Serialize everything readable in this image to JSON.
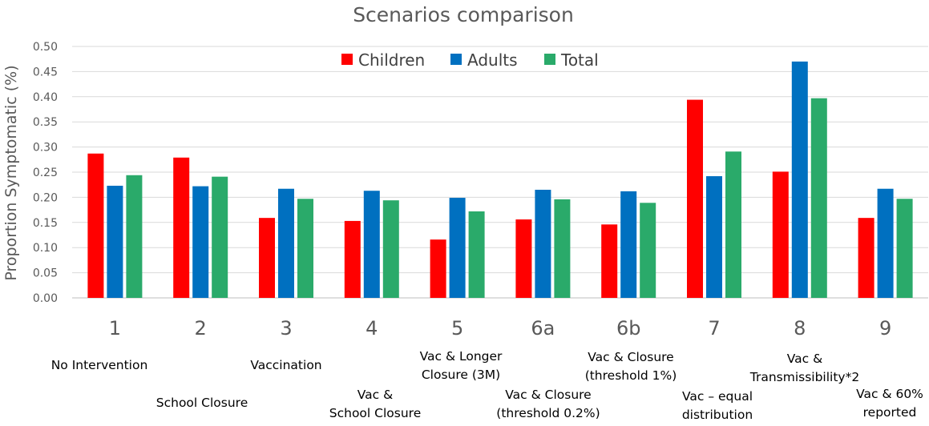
{
  "chart_data": {
    "type": "bar",
    "title": "Scenarios comparison",
    "xlabel": "",
    "ylabel": "Proportion Symptomatic (%)",
    "ylim": [
      0,
      0.5
    ],
    "yticks": [
      "0.00",
      "0.05",
      "0.10",
      "0.15",
      "0.20",
      "0.25",
      "0.30",
      "0.35",
      "0.40",
      "0.45",
      "0.50"
    ],
    "grid": true,
    "legend_position": "top",
    "categories": [
      "1",
      "2",
      "3",
      "4",
      "5",
      "6a",
      "6b",
      "7",
      "8",
      "9"
    ],
    "category_notes": [
      [
        "No Intervention"
      ],
      [
        "School Closure"
      ],
      [
        "Vaccination"
      ],
      [
        "Vac &",
        "School Closure"
      ],
      [
        "Vac & Longer",
        "Closure (3M)"
      ],
      [
        "Vac & Closure",
        "(threshold 0.2%)"
      ],
      [
        "Vac & Closure",
        "(threshold 1%)"
      ],
      [
        "Vac – equal",
        "distribution"
      ],
      [
        "Vac &",
        "Transmissibility*2"
      ],
      [
        "Vac & 60%",
        "reported"
      ]
    ],
    "series": [
      {
        "name": "Children",
        "color": "#ff0000",
        "values": [
          0.287,
          0.279,
          0.159,
          0.153,
          0.116,
          0.156,
          0.146,
          0.394,
          0.251,
          0.159
        ]
      },
      {
        "name": "Adults",
        "color": "#0070c0",
        "values": [
          0.223,
          0.222,
          0.217,
          0.213,
          0.199,
          0.215,
          0.212,
          0.242,
          0.47,
          0.217
        ]
      },
      {
        "name": "Total",
        "color": "#2aaa6a",
        "values": [
          0.244,
          0.241,
          0.197,
          0.194,
          0.172,
          0.196,
          0.189,
          0.291,
          0.397,
          0.197
        ]
      }
    ]
  }
}
